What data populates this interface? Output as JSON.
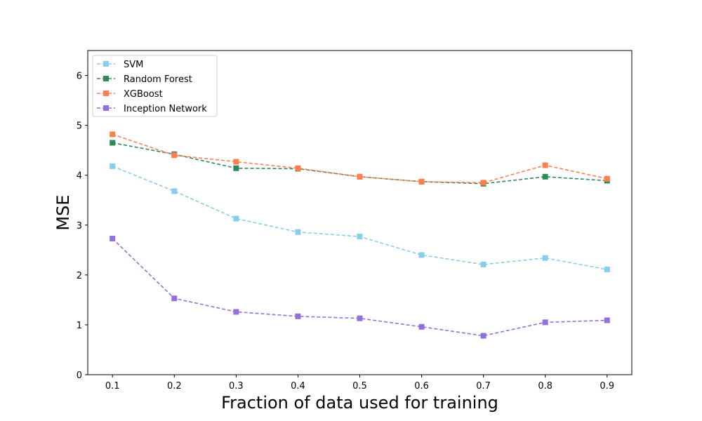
{
  "chart_data": {
    "type": "line",
    "xlabel": "Fraction of data used for training",
    "ylabel": "MSE",
    "x": [
      0.1,
      0.2,
      0.3,
      0.4,
      0.5,
      0.6,
      0.7,
      0.8,
      0.9
    ],
    "x_tick_labels": [
      "0.1",
      "0.2",
      "0.3",
      "0.4",
      "0.5",
      "0.6",
      "0.7",
      "0.8",
      "0.9"
    ],
    "y_ticks": [
      0,
      1,
      2,
      3,
      4,
      5,
      6
    ],
    "y_tick_labels": [
      "0",
      "1",
      "2",
      "3",
      "4",
      "5",
      "6"
    ],
    "xlim": [
      0.06,
      0.94
    ],
    "ylim": [
      0,
      6.5
    ],
    "grid": false,
    "legend_position": "top-left",
    "line_style": "dashed",
    "marker": "square",
    "series": [
      {
        "name": "SVM",
        "color": "#87ceeb",
        "values": [
          4.18,
          3.68,
          3.13,
          2.86,
          2.77,
          2.4,
          2.21,
          2.34,
          2.11
        ]
      },
      {
        "name": "Random Forest",
        "color": "#2e8b57",
        "values": [
          4.65,
          4.42,
          4.14,
          4.13,
          3.97,
          3.87,
          3.83,
          3.97,
          3.89
        ]
      },
      {
        "name": "XGBoost",
        "color": "#ff7f50",
        "values": [
          4.82,
          4.4,
          4.27,
          4.14,
          3.97,
          3.87,
          3.85,
          4.2,
          3.93
        ]
      },
      {
        "name": "Inception Network",
        "color": "#9370db",
        "values": [
          2.73,
          1.53,
          1.26,
          1.17,
          1.13,
          0.96,
          0.78,
          1.05,
          1.09
        ]
      }
    ]
  }
}
